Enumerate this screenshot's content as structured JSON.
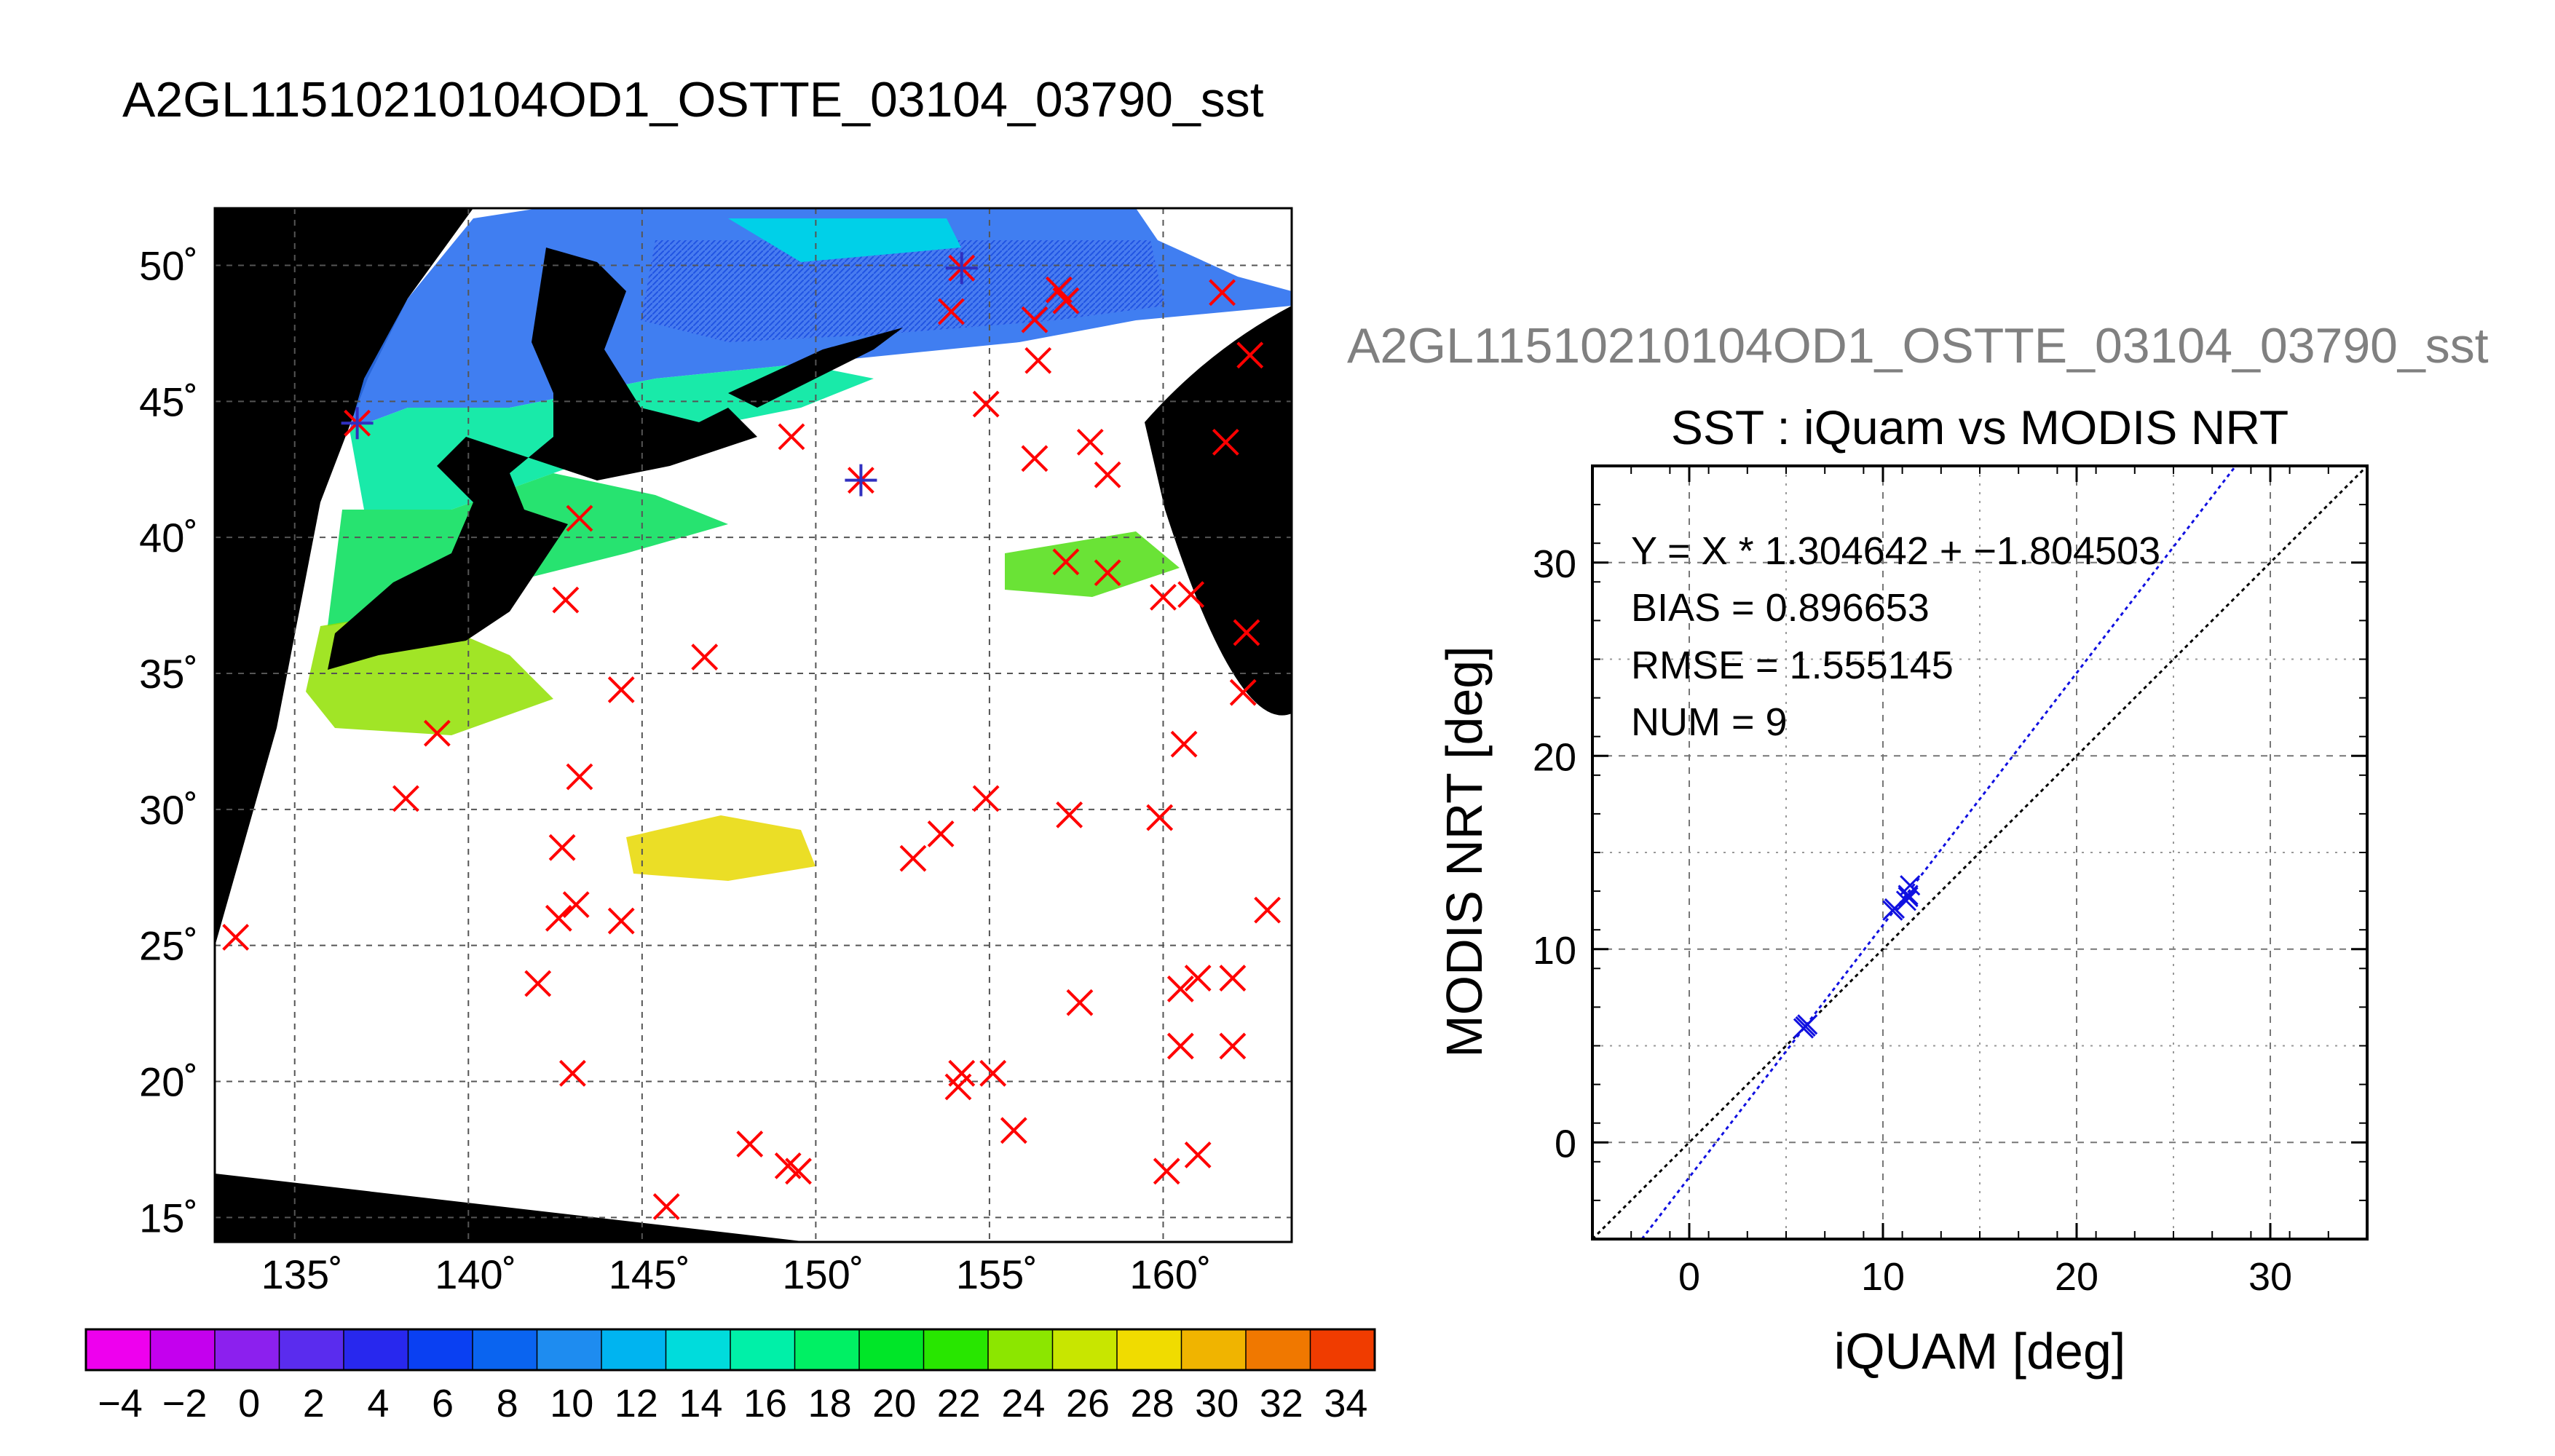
{
  "page": {
    "title": "A2GL11510210104OD1_OSTTE_03104_03790_sst"
  },
  "map": {
    "lat_ticks": [
      15,
      20,
      25,
      30,
      35,
      40,
      45,
      50
    ],
    "lat_labels": [
      "15˚",
      "20˚",
      "25˚",
      "30˚",
      "35˚",
      "40˚",
      "45˚",
      "50˚"
    ],
    "lon_ticks": [
      135,
      140,
      145,
      150,
      155,
      160
    ],
    "lon_labels": [
      "135˚",
      "140˚",
      "145˚",
      "150˚",
      "155˚",
      "160˚"
    ],
    "lon_range": [
      132.7,
      163.7
    ],
    "lat_range": [
      14.1,
      52.1
    ],
    "background": "#000000",
    "swath_color": "#ffffff",
    "marker_color": "#ff0000",
    "highlight_marker_color": "#3030c0",
    "buoys_red": [
      [
        133.3,
        25.3
      ],
      [
        136.8,
        44.2
      ],
      [
        139.1,
        32.8
      ],
      [
        138.2,
        30.4
      ],
      [
        142.0,
        23.6
      ],
      [
        142.6,
        26.0
      ],
      [
        142.7,
        28.6
      ],
      [
        143.1,
        26.5
      ],
      [
        143.0,
        20.3
      ],
      [
        143.2,
        31.2
      ],
      [
        142.8,
        37.7
      ],
      [
        143.2,
        40.7
      ],
      [
        144.4,
        34.4
      ],
      [
        144.4,
        25.9
      ],
      [
        145.7,
        15.4
      ],
      [
        146.8,
        35.6
      ],
      [
        148.1,
        17.7
      ],
      [
        149.2,
        16.9
      ],
      [
        149.5,
        16.7
      ],
      [
        149.3,
        43.7
      ],
      [
        151.3,
        42.1
      ],
      [
        152.8,
        28.2
      ],
      [
        153.6,
        29.1
      ],
      [
        153.9,
        48.3
      ],
      [
        154.1,
        19.8
      ],
      [
        154.2,
        20.3
      ],
      [
        154.2,
        49.9
      ],
      [
        154.9,
        44.9
      ],
      [
        154.9,
        30.4
      ],
      [
        155.1,
        20.3
      ],
      [
        155.7,
        18.2
      ],
      [
        156.3,
        48.0
      ],
      [
        156.4,
        46.5
      ],
      [
        156.3,
        42.9
      ],
      [
        157.0,
        49.1
      ],
      [
        157.2,
        48.7
      ],
      [
        157.2,
        39.1
      ],
      [
        157.3,
        29.8
      ],
      [
        157.6,
        22.9
      ],
      [
        157.9,
        43.5
      ],
      [
        158.4,
        38.7
      ],
      [
        158.4,
        42.3
      ],
      [
        160.0,
        37.8
      ],
      [
        159.9,
        29.7
      ],
      [
        160.1,
        16.7
      ],
      [
        160.5,
        23.4
      ],
      [
        160.5,
        21.3
      ],
      [
        160.6,
        32.4
      ],
      [
        160.8,
        37.9
      ],
      [
        161.0,
        17.3
      ],
      [
        161.0,
        23.8
      ],
      [
        161.7,
        49.0
      ],
      [
        161.8,
        43.5
      ],
      [
        162.0,
        23.8
      ],
      [
        162.0,
        21.3
      ],
      [
        162.3,
        34.3
      ],
      [
        162.4,
        36.5
      ],
      [
        162.5,
        46.7
      ],
      [
        163.0,
        26.3
      ]
    ],
    "buoys_blue": [
      [
        136.8,
        44.2
      ],
      [
        151.3,
        42.1
      ],
      [
        154.2,
        49.9
      ]
    ]
  },
  "colorbar": {
    "tick_labels": [
      "−4",
      "−2",
      "0",
      "2",
      "4",
      "6",
      "8",
      "10",
      "12",
      "14",
      "16",
      "18",
      "20",
      "22",
      "24",
      "26",
      "28",
      "30",
      "32",
      "34"
    ],
    "colors": [
      "#ee00ee",
      "#c400ee",
      "#8c20ee",
      "#5a2cee",
      "#2828ee",
      "#0a40f2",
      "#0a64f0",
      "#1e8cf0",
      "#00b4f0",
      "#00dcdc",
      "#00f0a8",
      "#00f064",
      "#00e628",
      "#28e600",
      "#8ce600",
      "#c8e600",
      "#f0dc00",
      "#f0b400",
      "#f07800",
      "#f03c00"
    ]
  },
  "scatter": {
    "file_label": "A2GL11510210104OD1_OSTTE_03104_03790_sst",
    "stats": {
      "equation": "Y = X * 1.304642 + −1.804503",
      "bias": "BIAS = 0.896653",
      "rmse": "RMSE = 1.555145",
      "num": "NUM = 9"
    }
  },
  "chart_data": {
    "type": "scatter",
    "title": "SST : iQuam vs MODIS NRT",
    "xlabel": "iQUAM [deg]",
    "ylabel": "MODIS NRT [deg]",
    "xlim": [
      -5,
      35
    ],
    "ylim": [
      -5,
      35
    ],
    "xticks": [
      0,
      10,
      20,
      30
    ],
    "yticks": [
      0,
      10,
      20,
      30
    ],
    "grid": true,
    "points": {
      "x": [
        6.0,
        6.1,
        5.9,
        10.5,
        10.6,
        11.3,
        11.4,
        11.2,
        11.3
      ],
      "y": [
        6.0,
        6.1,
        5.9,
        12.0,
        12.1,
        12.7,
        13.3,
        12.5,
        12.8
      ]
    },
    "fit_line": {
      "slope": 1.304642,
      "intercept": -1.804503,
      "color": "#1010e0"
    },
    "identity_line": {
      "slope": 1,
      "intercept": 0,
      "color": "#000000"
    },
    "marker_color": "#1010e0"
  }
}
